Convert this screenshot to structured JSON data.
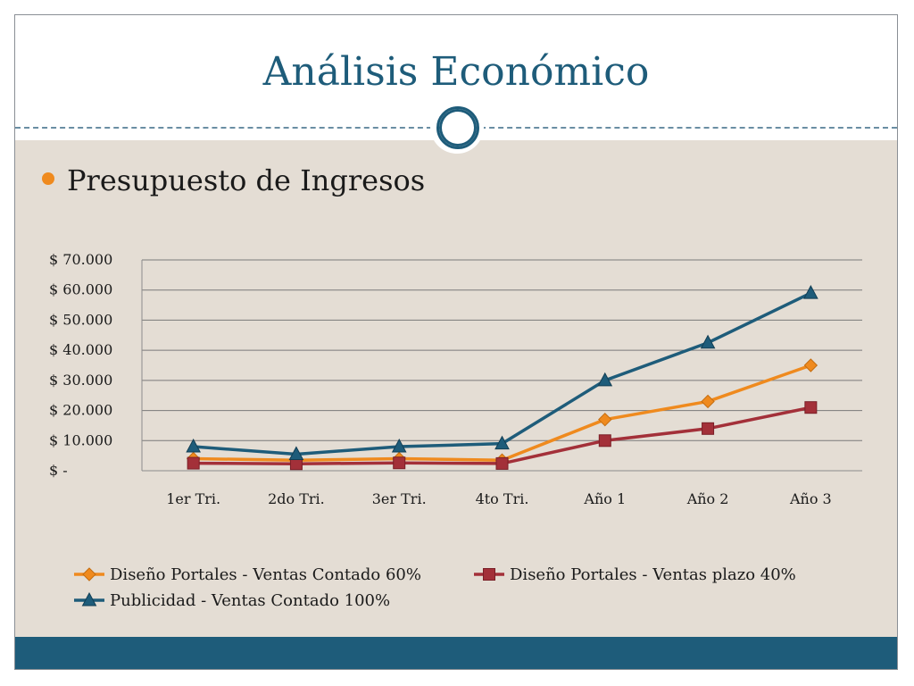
{
  "slide": {
    "title": "Análisis Económico",
    "bullet": "Presupuesto de Ingresos"
  },
  "colors": {
    "title": "#1e5c7a",
    "background": "#e4ddd4",
    "footer": "#1e5c7a",
    "bullet": "#ef8a1e"
  },
  "chart_data": {
    "type": "line",
    "categories": [
      "1er Tri.",
      "2do Tri.",
      "3er Tri.",
      "4to Tri.",
      "Año 1",
      "Año 2",
      "Año 3"
    ],
    "yticks": [
      "$ -",
      "$ 10.000",
      "$ 20.000",
      "$ 30.000",
      "$ 40.000",
      "$ 50.000",
      "$ 60.000",
      "$ 70.000"
    ],
    "ylim": [
      0,
      70000
    ],
    "grid": true,
    "legend_position": "bottom",
    "series": [
      {
        "name": "Diseño Portales - Ventas Contado 60%",
        "color": "#ef8a1e",
        "marker": "diamond",
        "values": [
          4000,
          3500,
          4000,
          3500,
          17000,
          23000,
          35000
        ]
      },
      {
        "name": "Diseño Portales - Ventas plazo 40%",
        "color": "#a33039",
        "marker": "square",
        "values": [
          2500,
          2300,
          2600,
          2400,
          10000,
          14000,
          21000
        ]
      },
      {
        "name": "Publicidad - Ventas Contado 100%",
        "color": "#1e5c7a",
        "marker": "triangle",
        "values": [
          8000,
          5500,
          8000,
          9000,
          30000,
          42500,
          59000
        ]
      }
    ]
  }
}
